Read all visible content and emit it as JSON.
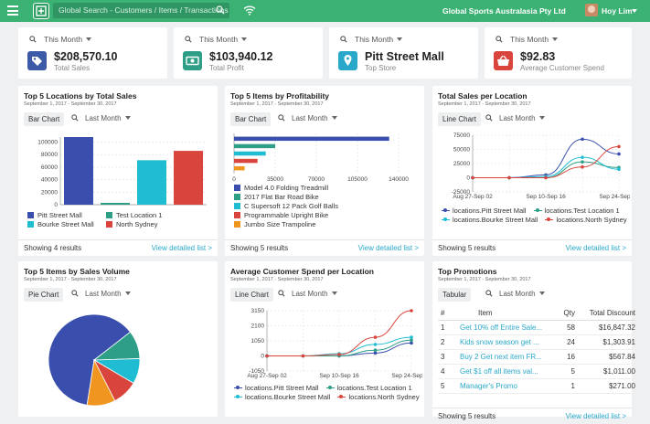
{
  "header": {
    "search_placeholder": "Global Search - Customers / Items / Transactions",
    "org_name": "Global Sports Australasia Pty Ltd",
    "user_name": "Hoy Lim",
    "brand_color": "#3bb273"
  },
  "kpis": [
    {
      "period": "This Month",
      "value": "$208,570.10",
      "label": "Total Sales",
      "icon": "tag-icon",
      "color": "#3c5aa8"
    },
    {
      "period": "This Month",
      "value": "$103,940.12",
      "label": "Total Profit",
      "icon": "cash-icon",
      "color": "#2e9e86"
    },
    {
      "period": "This Month",
      "value": "Pitt Street Mall",
      "label": "Top Store",
      "icon": "map-pin-icon",
      "color": "#29a8c9"
    },
    {
      "period": "This Month",
      "value": "$92.83",
      "label": "Average Customer Spend",
      "icon": "basket-icon",
      "color": "#d9453d"
    }
  ],
  "panels": {
    "top_locations": {
      "title": "Top 5 Locations by Total Sales",
      "date": "September 1, 2017 - September 30, 2017",
      "chart_type": "Bar Chart",
      "range": "Last Month",
      "showing": "Showing 4 results",
      "detail": "View detailed list >"
    },
    "top_items": {
      "title": "Top 5 Items by Profitability",
      "date": "September 1, 2017 - September 30, 2017",
      "chart_type": "Bar Chart",
      "range": "Last Month",
      "showing": "Showing 5 results",
      "detail": "View detailed list >"
    },
    "sales_per_location": {
      "title": "Total Sales per Location",
      "date": "September 1, 2017 - September 30, 2017",
      "chart_type": "Line Chart",
      "range": "Last Month",
      "showing": "Showing 5 results",
      "detail": "View detailed list >"
    },
    "items_volume": {
      "title": "Top 5 Items by Sales Volume",
      "date": "September 1, 2017 - September 30, 2017",
      "chart_type": "Pie Chart",
      "range": "Last Month"
    },
    "avg_spend": {
      "title": "Average Customer Spend per Location",
      "date": "September 1, 2017 - September 30, 2017",
      "chart_type": "Line Chart",
      "range": "Last Month"
    },
    "promotions": {
      "title": "Top Promotions",
      "date": "September 1, 2017 - September 30, 2017",
      "chart_type": "Tabular",
      "range": "Last Month",
      "showing": "Showing 5 results",
      "detail": "View detailed list >",
      "columns": {
        "num": "#",
        "item": "Item",
        "qty": "Qty",
        "discount": "Total Discount"
      },
      "rows": [
        {
          "num": "1",
          "item": "Get 10% off Entire Sale...",
          "qty": "58",
          "discount": "$16,847.32"
        },
        {
          "num": "2",
          "item": "Kids snow season get ...",
          "qty": "24",
          "discount": "$1,303.91"
        },
        {
          "num": "3",
          "item": "Buy 2 Get next item FR...",
          "qty": "16",
          "discount": "$567.84"
        },
        {
          "num": "4",
          "item": "Get $1 off all items val...",
          "qty": "5",
          "discount": "$1,011.00"
        },
        {
          "num": "5",
          "item": "Manager's Promo",
          "qty": "1",
          "discount": "$271.00"
        }
      ]
    }
  },
  "chart_data": [
    {
      "type": "bar",
      "categories": [
        "Pitt Street Mall",
        "Test Location 1",
        "Bourke Street Mall",
        "North Sydney"
      ],
      "values": [
        108000,
        2000,
        71000,
        86000
      ],
      "colors": [
        "#3a4fad",
        "#2e9e86",
        "#1fbcd2",
        "#d9453d"
      ],
      "yticks": [
        "0",
        "20000",
        "40000",
        "60000",
        "80000",
        "100000"
      ],
      "ylim": [
        0,
        108000
      ],
      "grid": true,
      "legend": "bottom"
    },
    {
      "type": "bar",
      "orientation": "horizontal",
      "categories": [
        "Model 4.0 Folding Treadmill",
        "2017 Flat Bar Road Bike",
        "C Supersoft 12 Pack Golf Balls",
        "Programmable Upright Bike",
        "Jumbo Size Trampoline"
      ],
      "values": [
        132000,
        35000,
        27000,
        20000,
        9000
      ],
      "colors": [
        "#3a4fad",
        "#2e9e86",
        "#1fbcd2",
        "#d9453d",
        "#f0951f"
      ],
      "xticks": [
        "0",
        "35000",
        "70000",
        "105000",
        "140000"
      ],
      "xlim": [
        0,
        140000
      ],
      "grid": true,
      "legend": "bottom"
    },
    {
      "type": "line",
      "x": [
        "Aug 27-Sep 02",
        "Sep 03-Sep 09",
        "Sep 10-Sep 16",
        "Sep 17-Sep 23",
        "Sep 24-Sep 30"
      ],
      "xticks": [
        "Aug 27-Sep 02",
        "Sep 10-Sep 16",
        "Sep 24-Sep 30"
      ],
      "yticks": [
        "-25000",
        "0",
        "25000",
        "50000",
        "75000"
      ],
      "ylim": [
        -25000,
        75000
      ],
      "series": [
        {
          "name": "locations.Pitt Street Mall",
          "color": "#3a4fad",
          "values": [
            0,
            0,
            5000,
            68000,
            42000
          ]
        },
        {
          "name": "locations.Test Location 1",
          "color": "#2e9e86",
          "values": [
            0,
            0,
            0,
            28000,
            18000
          ]
        },
        {
          "name": "locations.Bourke Street Mall",
          "color": "#1fbcd2",
          "values": [
            0,
            0,
            2000,
            36000,
            15000
          ]
        },
        {
          "name": "locations.North Sydney",
          "color": "#d9453d",
          "values": [
            0,
            0,
            0,
            19000,
            55000
          ]
        }
      ],
      "legend": "bottom"
    },
    {
      "type": "pie",
      "values": [
        62,
        10,
        9,
        9,
        10
      ],
      "colors": [
        "#3a4fad",
        "#2e9e86",
        "#1fbcd2",
        "#d9453d",
        "#f0951f"
      ]
    },
    {
      "type": "line",
      "x": [
        "Aug 27-Sep 02",
        "Sep 03-Sep 09",
        "Sep 10-Sep 16",
        "Sep 17-Sep 23",
        "Sep 24-Sep 30"
      ],
      "xticks": [
        "Aug 27-Sep 02",
        "Sep 10-Sep 16",
        "Sep 24-Sep 30"
      ],
      "yticks": [
        "-1050",
        "0",
        "1050",
        "2100",
        "3150"
      ],
      "ylim": [
        -1050,
        3150
      ],
      "series": [
        {
          "name": "locations.Pitt Street Mall",
          "color": "#3a4fad",
          "values": [
            0,
            0,
            0,
            200,
            900
          ]
        },
        {
          "name": "locations.Test Location 1",
          "color": "#2e9e86",
          "values": [
            0,
            0,
            0,
            400,
            1100
          ]
        },
        {
          "name": "locations.Bourke Street Mall",
          "color": "#1fbcd2",
          "values": [
            0,
            0,
            150,
            800,
            1300
          ]
        },
        {
          "name": "locations.North Sydney",
          "color": "#d9453d",
          "values": [
            0,
            0,
            100,
            1300,
            3150
          ]
        }
      ],
      "legend": "bottom"
    }
  ]
}
